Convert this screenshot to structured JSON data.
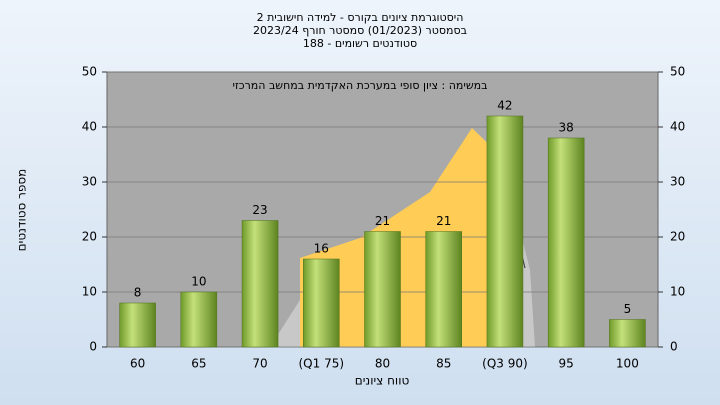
{
  "chart_data": {
    "type": "bar",
    "title_lines": [
      "היסטוגרמת ציונים בקורס - למידה חישובית 2",
      "בסמסטר  (01/2023)  סמסטר חורף 2023/24",
      "סטודנטים רשומים - 188"
    ],
    "annotation": "במשימה : ציון סופי במערכת האקדמית במחשב המרכזי",
    "x_label": "טווח ציונים",
    "y_label": "מספר סטודנטים",
    "categories": [
      "60",
      "65",
      "70",
      "(Q1 75)",
      "80",
      "85",
      "(Q3 90)",
      "95",
      "100"
    ],
    "values": [
      8,
      10,
      23,
      16,
      21,
      21,
      42,
      38,
      5
    ],
    "color": "#8fbf3f",
    "ylim": [
      0,
      50
    ],
    "yticks": [
      0,
      10,
      20,
      30,
      40,
      50
    ],
    "y2lim": [
      0,
      50
    ],
    "y2ticks": [
      0,
      10,
      20,
      30,
      40,
      50
    ],
    "grid": true
  }
}
